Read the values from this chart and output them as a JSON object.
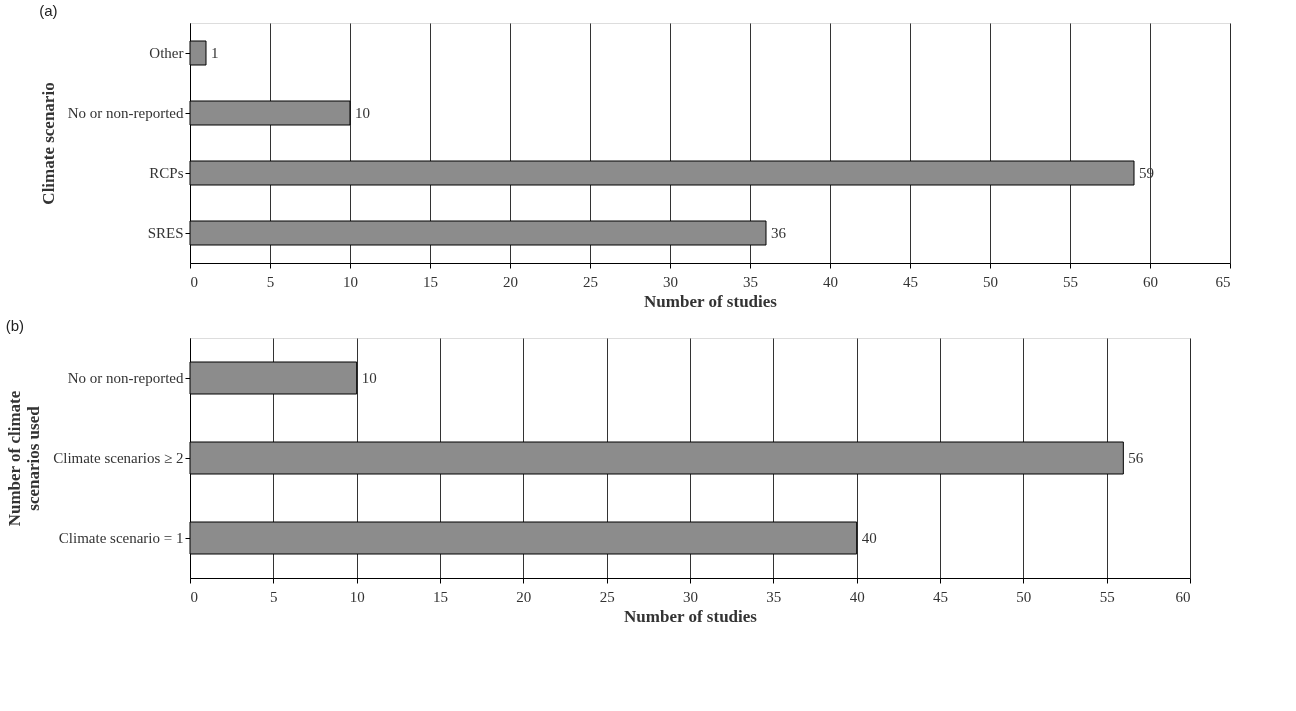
{
  "chart_data": [
    {
      "type": "bar",
      "orientation": "horizontal",
      "title": "(a)",
      "xlabel": "Number of studies",
      "ylabel": "Climate scenario",
      "categories": [
        "Other",
        "No or non-reported",
        "RCPs",
        "SRES"
      ],
      "values": [
        1,
        10,
        59,
        36
      ],
      "color": "#8c8c8c",
      "xlim": [
        0,
        65
      ],
      "xticks": [
        0,
        5,
        10,
        15,
        20,
        25,
        30,
        35,
        40,
        45,
        50,
        55,
        60,
        65
      ],
      "grid": "x",
      "data_labels": true
    },
    {
      "type": "bar",
      "orientation": "horizontal",
      "title": "(b)",
      "xlabel": "Number of studies",
      "ylabel": "Number of climate\nscenarios used",
      "categories": [
        "No or non-reported",
        "Climate scenarios ≥ 2",
        "Climate scenario = 1"
      ],
      "values": [
        10,
        56,
        40
      ],
      "color": "#8c8c8c",
      "xlim": [
        0,
        60
      ],
      "xticks": [
        0,
        5,
        10,
        15,
        20,
        25,
        30,
        35,
        40,
        45,
        50,
        55,
        60
      ],
      "grid": "x",
      "data_labels": true
    }
  ]
}
